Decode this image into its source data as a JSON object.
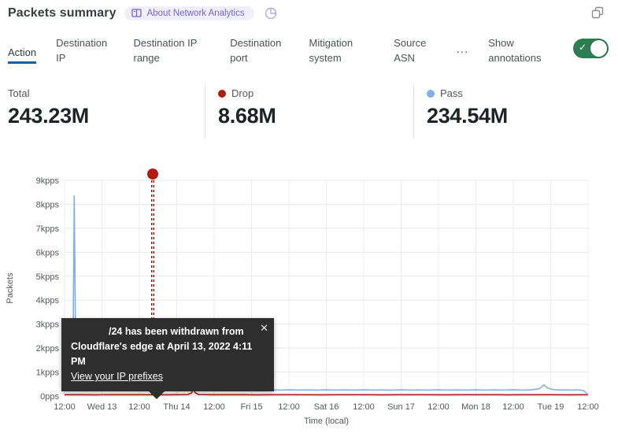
{
  "header": {
    "title": "Packets summary",
    "badge_label": "About Network Analytics"
  },
  "tabs": {
    "items": [
      {
        "label": "Action",
        "active": true
      },
      {
        "label": "Destination IP",
        "active": false
      },
      {
        "label": "Destination IP range",
        "active": false
      },
      {
        "label": "Destination port",
        "active": false
      },
      {
        "label": "Mitigation system",
        "active": false
      },
      {
        "label": "Source ASN",
        "active": false
      }
    ],
    "more_label": "...",
    "annotations_label": "Show annotations",
    "annotations_toggle_on": true,
    "toggle_check": "✓"
  },
  "stats": [
    {
      "label": "Total",
      "value": "243.23M",
      "dot_color": ""
    },
    {
      "label": "Drop",
      "value": "8.68M",
      "dot_color": "#b01b0e"
    },
    {
      "label": "Pass",
      "value": "234.54M",
      "dot_color": "#7fb0e8"
    }
  ],
  "tooltip": {
    "line1": "/24 has been withdrawn from",
    "line2": "Cloudflare's edge at April 13, 2022 4:11 PM",
    "link": "View your IP prefixes",
    "close": "✕"
  },
  "chart_data": {
    "type": "line",
    "title": "",
    "xlabel": "Time (local)",
    "ylabel": "Packets",
    "x_unit": "hours from Apr 12 12:00 to Apr 19 12:00 (local)",
    "x_range": [
      0,
      168
    ],
    "ylim": [
      0,
      9000
    ],
    "grid": true,
    "x_ticks": [
      "12:00",
      "Wed 13",
      "12:00",
      "Thu 14",
      "12:00",
      "Fri 15",
      "12:00",
      "Sat 16",
      "12:00",
      "Sun 17",
      "12:00",
      "Mon 18",
      "12:00",
      "Tue 19",
      "12:00"
    ],
    "y_ticks": [
      {
        "value": 0,
        "label": "0pps"
      },
      {
        "value": 1000,
        "label": "1kpps"
      },
      {
        "value": 2000,
        "label": "2kpps"
      },
      {
        "value": 3000,
        "label": "3kpps"
      },
      {
        "value": 4000,
        "label": "4kpps"
      },
      {
        "value": 5000,
        "label": "5kpps"
      },
      {
        "value": 6000,
        "label": "6kpps"
      },
      {
        "value": 7000,
        "label": "7kpps"
      },
      {
        "value": 8000,
        "label": "8kpps"
      },
      {
        "value": 9000,
        "label": "9kpps"
      }
    ],
    "series": [
      {
        "name": "Pass",
        "color": "#7fb0e8",
        "points": [
          [
            0,
            300
          ],
          [
            0.6,
            780
          ],
          [
            1.2,
            340
          ],
          [
            2,
            420
          ],
          [
            2.7,
            1500
          ],
          [
            3.1,
            8350
          ],
          [
            3.5,
            2600
          ],
          [
            3.9,
            1150
          ],
          [
            4.6,
            820
          ],
          [
            5.6,
            620
          ],
          [
            7,
            470
          ],
          [
            9,
            360
          ],
          [
            11,
            300
          ],
          [
            13,
            270
          ],
          [
            15,
            265
          ],
          [
            17,
            260
          ],
          [
            19,
            310
          ],
          [
            20,
            460
          ],
          [
            21,
            330
          ],
          [
            23,
            265
          ],
          [
            25,
            255
          ],
          [
            27,
            250
          ],
          [
            29,
            262
          ],
          [
            31,
            248
          ],
          [
            33,
            242
          ],
          [
            35,
            252
          ],
          [
            37,
            262
          ],
          [
            39,
            250
          ],
          [
            41,
            285
          ],
          [
            42.5,
            390
          ],
          [
            44,
            285
          ],
          [
            46,
            252
          ],
          [
            48,
            262
          ],
          [
            50,
            250
          ],
          [
            52,
            242
          ],
          [
            54,
            252
          ],
          [
            56,
            248
          ],
          [
            58,
            262
          ],
          [
            60,
            252
          ],
          [
            62,
            290
          ],
          [
            63,
            440
          ],
          [
            64,
            305
          ],
          [
            66,
            262
          ],
          [
            69,
            250
          ],
          [
            72,
            258
          ],
          [
            75,
            248
          ],
          [
            78,
            255
          ],
          [
            81,
            248
          ],
          [
            84,
            260
          ],
          [
            87,
            250
          ],
          [
            90,
            255
          ],
          [
            93,
            248
          ],
          [
            96,
            260
          ],
          [
            99,
            250
          ],
          [
            102,
            255
          ],
          [
            105,
            248
          ],
          [
            108,
            258
          ],
          [
            111,
            250
          ],
          [
            114,
            255
          ],
          [
            117,
            248
          ],
          [
            120,
            258
          ],
          [
            123,
            250
          ],
          [
            126,
            255
          ],
          [
            129,
            248
          ],
          [
            132,
            258
          ],
          [
            135,
            250
          ],
          [
            138,
            255
          ],
          [
            141,
            248
          ],
          [
            144,
            258
          ],
          [
            147,
            250
          ],
          [
            150,
            258
          ],
          [
            152.5,
            310
          ],
          [
            153.8,
            470
          ],
          [
            155,
            330
          ],
          [
            157,
            265
          ],
          [
            159,
            252
          ],
          [
            161,
            255
          ],
          [
            163,
            248
          ],
          [
            165,
            255
          ],
          [
            166.5,
            230
          ],
          [
            167.5,
            120
          ],
          [
            168,
            60
          ]
        ]
      },
      {
        "name": "Drop",
        "color": "#a32014",
        "points": [
          [
            0,
            55
          ],
          [
            5,
            57
          ],
          [
            10,
            54
          ],
          [
            15,
            56
          ],
          [
            20,
            55
          ],
          [
            25,
            57
          ],
          [
            30,
            54
          ],
          [
            35,
            56
          ],
          [
            39.5,
            60
          ],
          [
            40.8,
            130
          ],
          [
            41.3,
            330
          ],
          [
            41.9,
            140
          ],
          [
            43,
            62
          ],
          [
            47,
            56
          ],
          [
            52,
            55
          ],
          [
            57,
            56
          ],
          [
            62,
            54
          ],
          [
            67,
            56
          ],
          [
            72,
            55
          ],
          [
            77,
            56
          ],
          [
            82,
            54
          ],
          [
            87,
            56
          ],
          [
            92,
            55
          ],
          [
            97,
            56
          ],
          [
            102,
            54
          ],
          [
            107,
            56
          ],
          [
            112,
            55
          ],
          [
            117,
            56
          ],
          [
            122,
            54
          ],
          [
            127,
            56
          ],
          [
            132,
            55
          ],
          [
            137,
            56
          ],
          [
            142,
            54
          ],
          [
            147,
            56
          ],
          [
            152,
            55
          ],
          [
            157,
            56
          ],
          [
            162,
            54
          ],
          [
            166,
            55
          ],
          [
            168,
            52
          ]
        ]
      }
    ],
    "annotation": {
      "t_hours": 28.3,
      "date": "April 13, 2022 4:11 PM",
      "line_color": "#7a150c",
      "dot_color": "#b41b10"
    },
    "legend_position": "in stats row above chart"
  }
}
